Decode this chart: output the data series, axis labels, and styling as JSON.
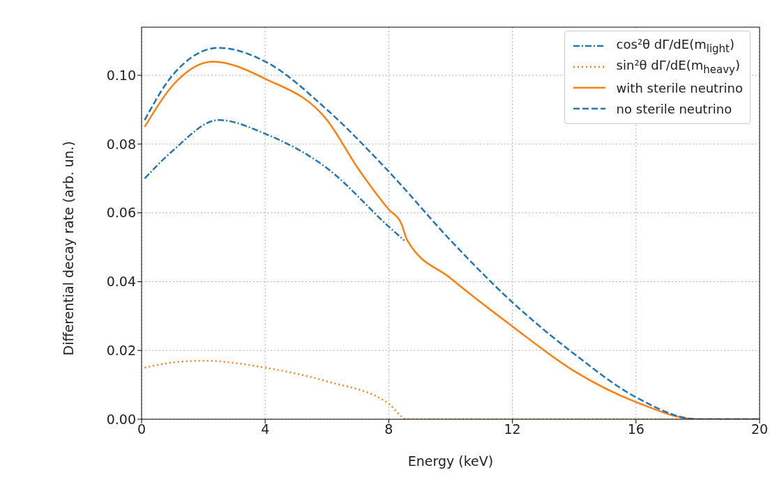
{
  "chart_data": {
    "type": "line",
    "xlabel": "Energy (keV)",
    "ylabel": "Differential decay rate (arb. un.)",
    "xlim": [
      0,
      20
    ],
    "xticks": [
      0,
      4,
      8,
      12,
      16,
      20
    ],
    "ylim": [
      0,
      0.114
    ],
    "yticks": [
      {
        "value": 0,
        "label": "0.00"
      },
      {
        "value": 0.02,
        "label": "0.02"
      },
      {
        "value": 0.04,
        "label": "0.04"
      },
      {
        "value": 0.06,
        "label": "0.06"
      },
      {
        "value": 0.08,
        "label": "0.08"
      },
      {
        "value": 0.1,
        "label": "0.10"
      }
    ],
    "grid": true,
    "legend": "top right",
    "marker": "none",
    "series": [
      {
        "name": "cos²θ dΓ/dE(m$_{light}$)",
        "color": "#1f77b4",
        "line_style": "dashdot",
        "x": [
          0.1,
          1,
          2.5,
          4,
          6,
          8,
          8.5
        ],
        "values": [
          0.07,
          0.078,
          0.087,
          0.083,
          0.073,
          0.056,
          0.052
        ]
      },
      {
        "name": "sin²θ dΓ/dE(m$_{heavy}$)",
        "color": "#ff7f0e",
        "line_style": "dotted",
        "x": [
          0.1,
          1,
          2,
          4,
          6,
          8,
          8.6,
          20
        ],
        "values": [
          0.015,
          0.0165,
          0.017,
          0.015,
          0.011,
          0.0045,
          0,
          0
        ]
      },
      {
        "name": "with sterile neutrino",
        "color": "#ff7f0e",
        "line_style": "solid",
        "x": [
          0.1,
          1,
          2.3,
          4,
          6,
          7,
          8,
          8.4,
          8.6,
          10,
          12,
          14,
          16,
          18,
          20
        ],
        "values": [
          0.085,
          0.097,
          0.104,
          0.099,
          0.087,
          0.073,
          0.061,
          0.057,
          0.052,
          0.041,
          0.027,
          0.014,
          0.005,
          0,
          0
        ]
      },
      {
        "name": "no sterile neutrino",
        "color": "#1f77b4",
        "line_style": "dashed",
        "x": [
          0.1,
          1,
          2.5,
          4,
          6,
          8,
          10,
          12,
          14,
          16,
          18,
          20
        ],
        "values": [
          0.087,
          0.1,
          0.108,
          0.104,
          0.09,
          0.072,
          0.052,
          0.034,
          0.019,
          0.0064,
          0,
          0
        ]
      }
    ]
  }
}
